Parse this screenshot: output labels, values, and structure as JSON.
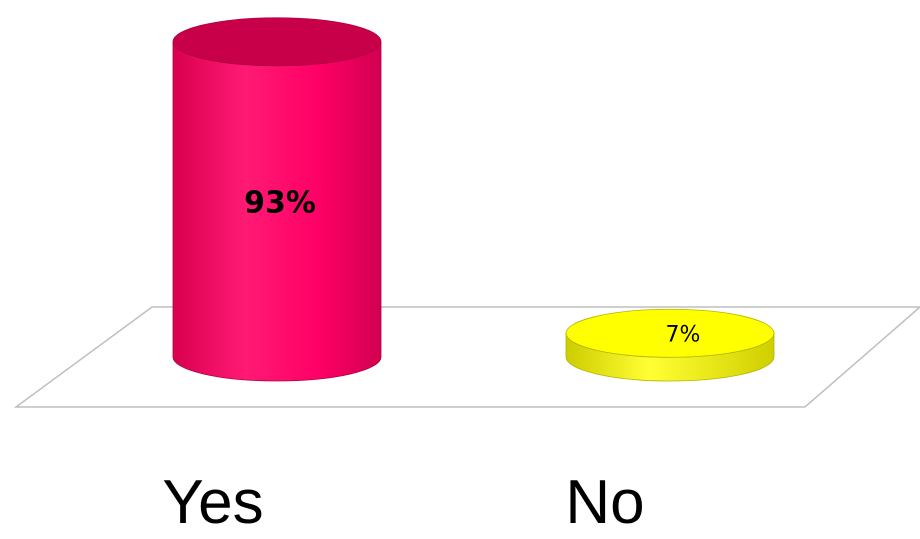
{
  "chart_data": {
    "type": "bar",
    "style": "3d-cylinder",
    "categories": [
      "Yes",
      "No"
    ],
    "values": [
      93,
      7
    ],
    "data_labels": [
      "93%",
      "7%"
    ],
    "colors": [
      "#ff0066",
      "#ffff00"
    ],
    "ylim": [
      0,
      100
    ],
    "grid": false,
    "legend": "none"
  }
}
